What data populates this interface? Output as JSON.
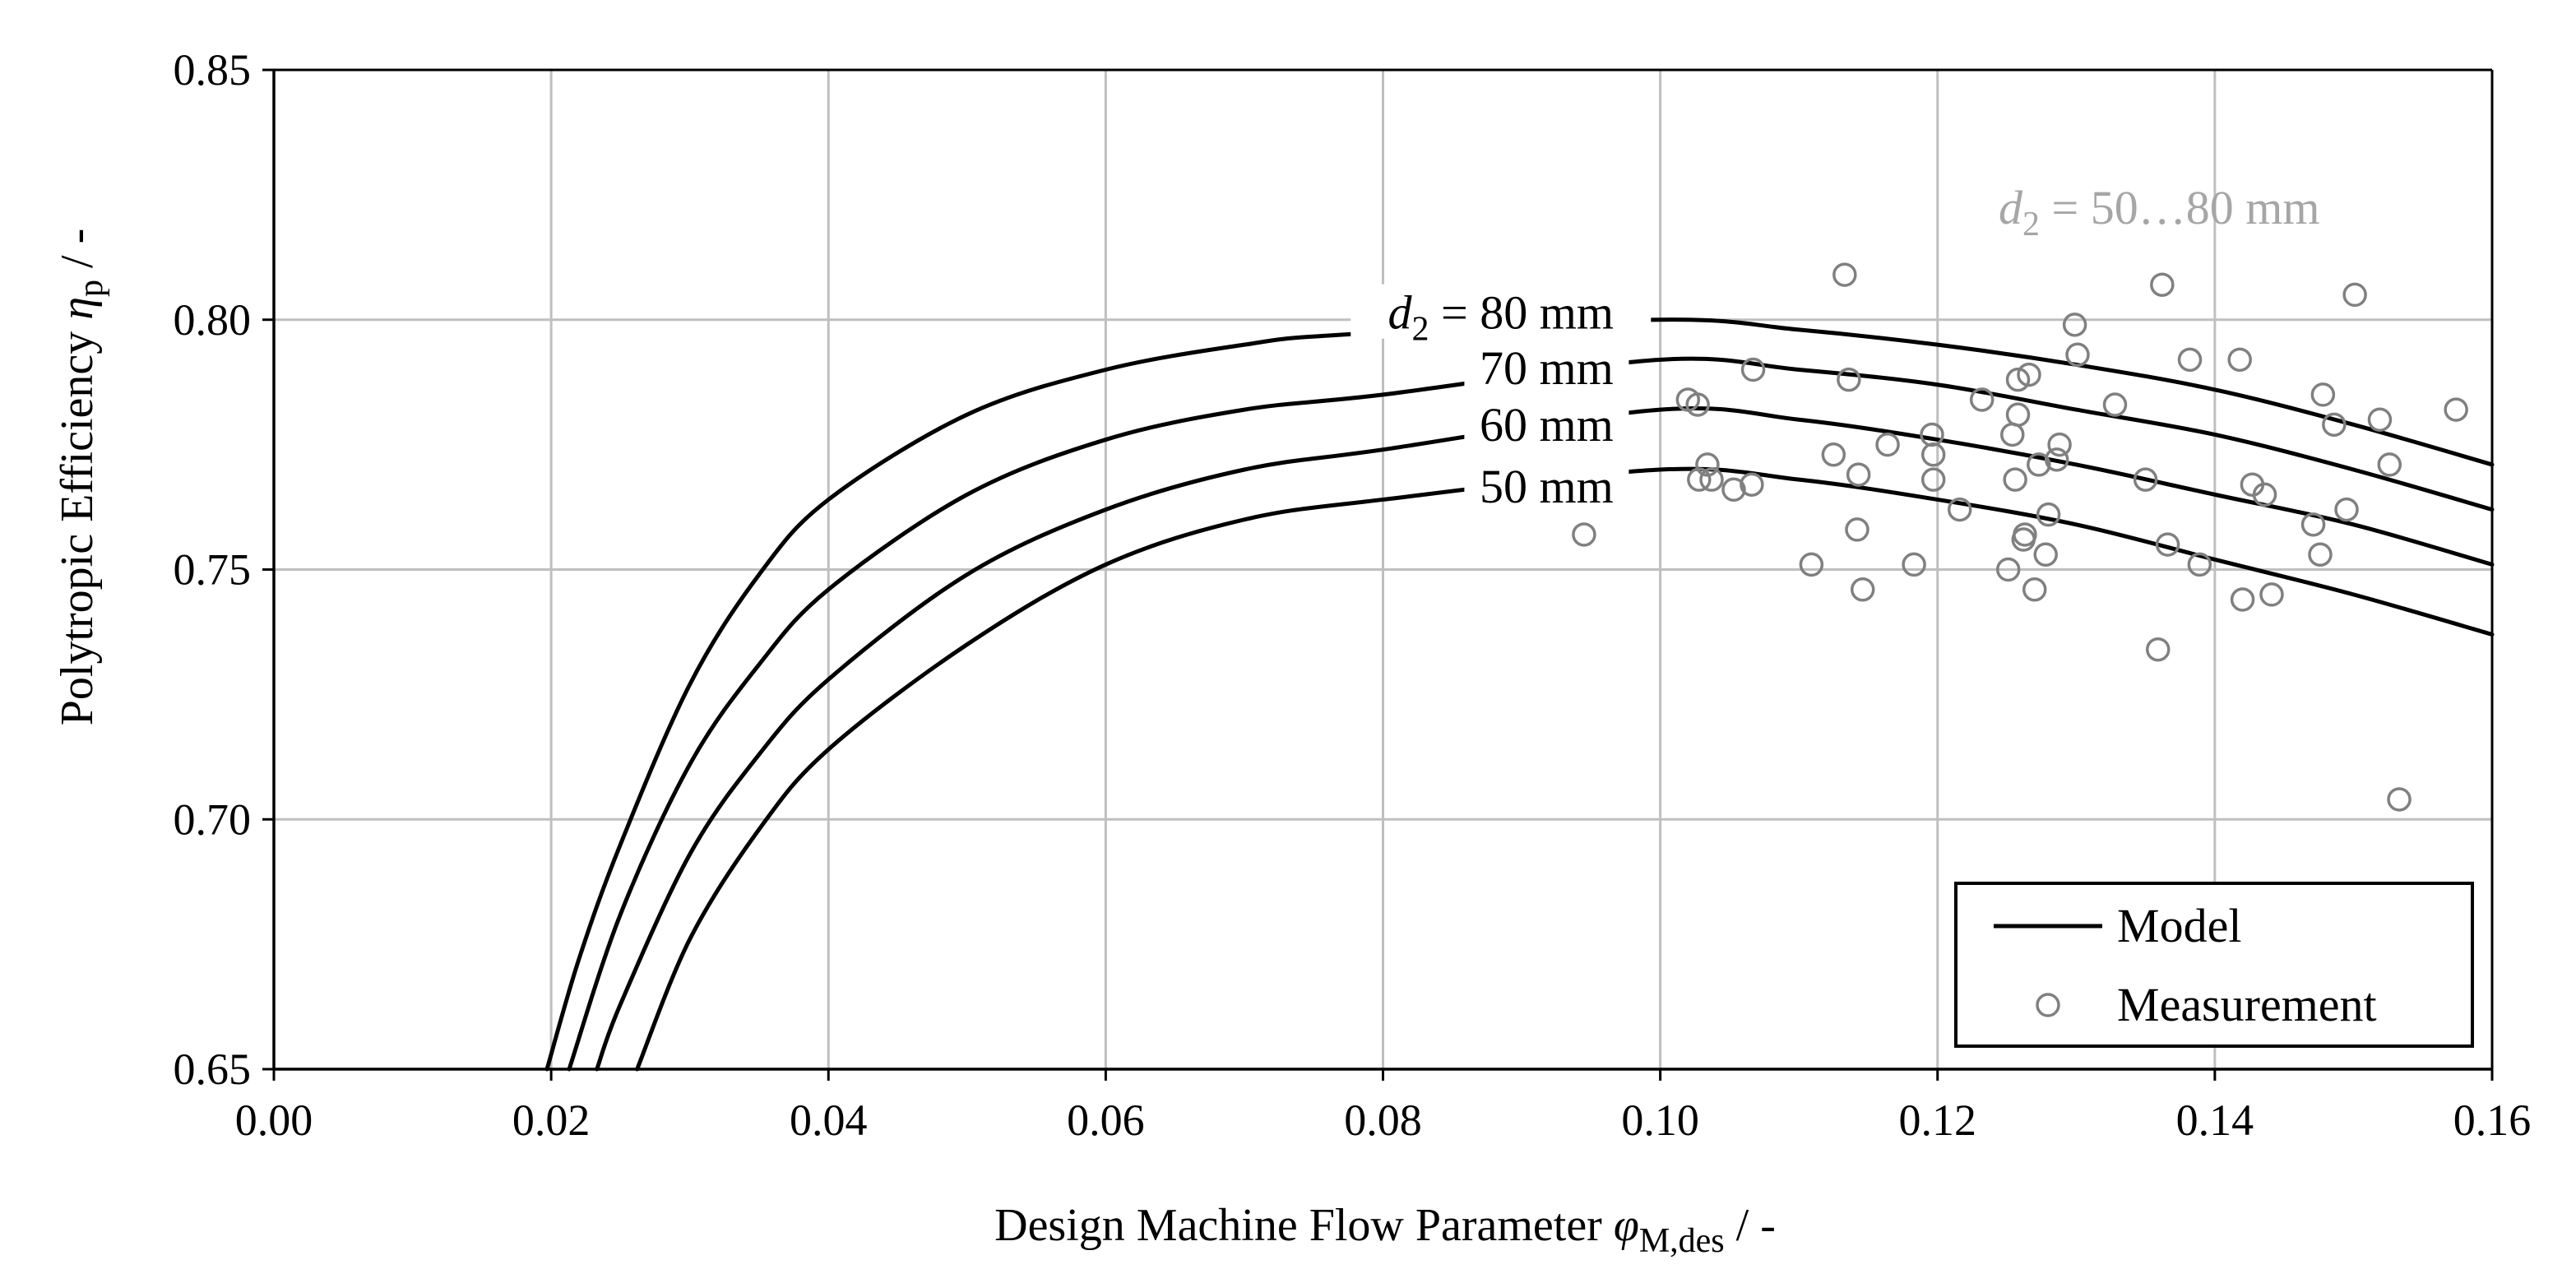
{
  "chart_data": {
    "type": "line+scatter",
    "xlabel": {
      "main": "Design Machine Flow Parameter ",
      "symbol": "φ",
      "sub": "M,des",
      "unit": " / -"
    },
    "ylabel": {
      "main": "Polytropic Efficiency ",
      "symbol": "η",
      "sub": "p",
      "unit": " / -"
    },
    "xlim": [
      0.0,
      0.16
    ],
    "ylim": [
      0.65,
      0.85
    ],
    "xticks": [
      "0.00",
      "0.02",
      "0.04",
      "0.06",
      "0.08",
      "0.10",
      "0.12",
      "0.14",
      "0.16"
    ],
    "yticks": [
      "0.65",
      "0.70",
      "0.75",
      "0.80",
      "0.85"
    ],
    "grid": true,
    "annotation": {
      "symbol": "d",
      "sub": "2",
      "text": " = 50…80 mm"
    },
    "series": [
      {
        "name": "d2 = 80 mm",
        "label_prefix_symbol": "d",
        "label_prefix_sub": "2",
        "label_prefix": " = ",
        "label": "80 mm",
        "x": [
          0.0197,
          0.022,
          0.025,
          0.03,
          0.035,
          0.04,
          0.05,
          0.06,
          0.07,
          0.077,
          0.1,
          0.11,
          0.12,
          0.13,
          0.14,
          0.15,
          0.16
        ],
        "y": [
          0.65,
          0.672,
          0.695,
          0.727,
          0.749,
          0.764,
          0.781,
          0.79,
          0.795,
          0.797,
          0.8,
          0.798,
          0.795,
          0.791,
          0.786,
          0.779,
          0.771
        ]
      },
      {
        "name": "70 mm",
        "label": "70 mm",
        "x": [
          0.0213,
          0.025,
          0.03,
          0.035,
          0.04,
          0.05,
          0.06,
          0.07,
          0.08,
          0.1,
          0.11,
          0.12,
          0.13,
          0.14,
          0.15,
          0.16
        ],
        "y": [
          0.65,
          0.681,
          0.711,
          0.731,
          0.746,
          0.765,
          0.776,
          0.782,
          0.785,
          0.792,
          0.79,
          0.787,
          0.782,
          0.777,
          0.77,
          0.762
        ]
      },
      {
        "name": "60 mm",
        "label": "60 mm",
        "x": [
          0.0233,
          0.025,
          0.03,
          0.035,
          0.04,
          0.05,
          0.06,
          0.07,
          0.08,
          0.1,
          0.11,
          0.12,
          0.13,
          0.14,
          0.15,
          0.16
        ],
        "y": [
          0.65,
          0.663,
          0.693,
          0.713,
          0.728,
          0.749,
          0.762,
          0.77,
          0.774,
          0.782,
          0.78,
          0.776,
          0.771,
          0.765,
          0.759,
          0.751
        ]
      },
      {
        "name": "50 mm",
        "label": "50 mm",
        "x": [
          0.0262,
          0.03,
          0.035,
          0.04,
          0.05,
          0.06,
          0.07,
          0.08,
          0.1,
          0.11,
          0.12,
          0.13,
          0.14,
          0.15,
          0.16
        ],
        "y": [
          0.65,
          0.676,
          0.698,
          0.714,
          0.735,
          0.751,
          0.76,
          0.764,
          0.77,
          0.768,
          0.764,
          0.759,
          0.752,
          0.745,
          0.737
        ]
      }
    ],
    "measurements": {
      "name": "Measurement",
      "points": [
        [
          0.0945,
          0.757
        ],
        [
          0.102,
          0.784
        ],
        [
          0.1027,
          0.783
        ],
        [
          0.1034,
          0.771
        ],
        [
          0.1028,
          0.768
        ],
        [
          0.1037,
          0.768
        ],
        [
          0.1053,
          0.766
        ],
        [
          0.1066,
          0.767
        ],
        [
          0.1067,
          0.79
        ],
        [
          0.1109,
          0.751
        ],
        [
          0.1125,
          0.773
        ],
        [
          0.1133,
          0.809
        ],
        [
          0.1136,
          0.788
        ],
        [
          0.1142,
          0.758
        ],
        [
          0.1143,
          0.769
        ],
        [
          0.1146,
          0.746
        ],
        [
          0.1164,
          0.775
        ],
        [
          0.1183,
          0.751
        ],
        [
          0.1196,
          0.777
        ],
        [
          0.1197,
          0.773
        ],
        [
          0.1197,
          0.768
        ],
        [
          0.1216,
          0.762
        ],
        [
          0.1232,
          0.784
        ],
        [
          0.1251,
          0.75
        ],
        [
          0.1254,
          0.777
        ],
        [
          0.1256,
          0.768
        ],
        [
          0.1258,
          0.781
        ],
        [
          0.1258,
          0.788
        ],
        [
          0.1262,
          0.756
        ],
        [
          0.1263,
          0.757
        ],
        [
          0.1266,
          0.789
        ],
        [
          0.127,
          0.746
        ],
        [
          0.1273,
          0.771
        ],
        [
          0.1278,
          0.753
        ],
        [
          0.128,
          0.761
        ],
        [
          0.1286,
          0.772
        ],
        [
          0.1288,
          0.775
        ],
        [
          0.1299,
          0.799
        ],
        [
          0.1301,
          0.793
        ],
        [
          0.1328,
          0.783
        ],
        [
          0.135,
          0.768
        ],
        [
          0.1359,
          0.734
        ],
        [
          0.1362,
          0.807
        ],
        [
          0.1366,
          0.755
        ],
        [
          0.1382,
          0.792
        ],
        [
          0.1389,
          0.751
        ],
        [
          0.1418,
          0.792
        ],
        [
          0.142,
          0.744
        ],
        [
          0.1427,
          0.767
        ],
        [
          0.1436,
          0.765
        ],
        [
          0.1441,
          0.745
        ],
        [
          0.1471,
          0.759
        ],
        [
          0.1476,
          0.753
        ],
        [
          0.1478,
          0.785
        ],
        [
          0.1486,
          0.779
        ],
        [
          0.1495,
          0.762
        ],
        [
          0.1501,
          0.805
        ],
        [
          0.1519,
          0.78
        ],
        [
          0.1526,
          0.771
        ],
        [
          0.1533,
          0.704
        ],
        [
          0.1574,
          0.782
        ]
      ]
    },
    "legend": {
      "position": "bottom-right",
      "entries": [
        {
          "label": "Model",
          "marker": "line"
        },
        {
          "label": "Measurement",
          "marker": "circle"
        }
      ]
    },
    "colors": {
      "model": "#000000",
      "measurement": "#808080",
      "grid": "#bfbfbf",
      "annotation": "#a6a6a6"
    }
  }
}
